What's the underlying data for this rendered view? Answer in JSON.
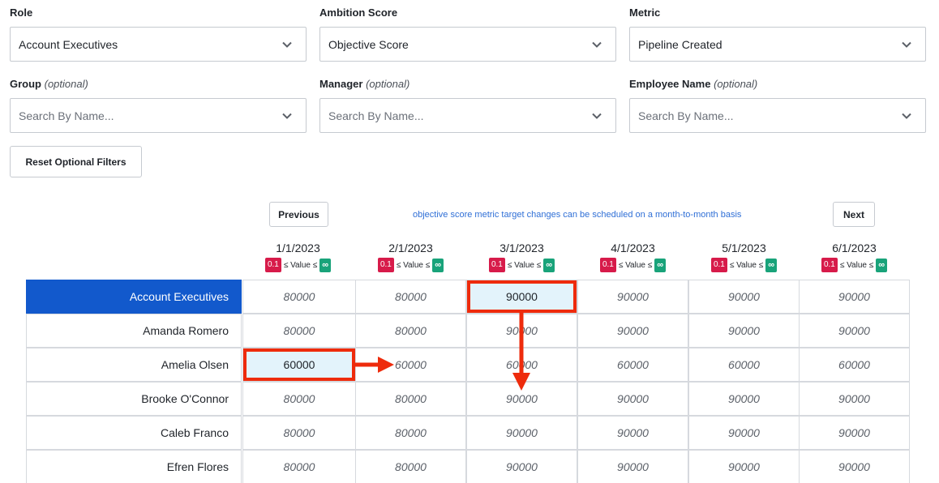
{
  "filters": {
    "role": {
      "label": "Role",
      "value": "Account Executives"
    },
    "ambition": {
      "label": "Ambition Score",
      "value": "Objective Score"
    },
    "metric": {
      "label": "Metric",
      "value": "Pipeline Created"
    },
    "group": {
      "label": "Group",
      "optional": "(optional)",
      "placeholder": "Search By Name..."
    },
    "manager": {
      "label": "Manager",
      "optional": "(optional)",
      "placeholder": "Search By Name..."
    },
    "employee": {
      "label": "Employee Name",
      "optional": "(optional)",
      "placeholder": "Search By Name..."
    }
  },
  "reset_button": "Reset Optional Filters",
  "nav": {
    "previous": "Previous",
    "next": "Next",
    "note": "objective score metric target changes can be scheduled on a month-to-month basis"
  },
  "range": {
    "min": "0.1",
    "middle": "≤ Value ≤",
    "max": "∞"
  },
  "colors": {
    "role_row": "#1259cc",
    "highlight": "#e3f3fb",
    "annotation": "#ee2b0c",
    "badge_min": "#d71b4a",
    "badge_max": "#19a37a"
  },
  "dates": [
    "1/1/2023",
    "2/1/2023",
    "3/1/2023",
    "4/1/2023",
    "5/1/2023",
    "6/1/2023"
  ],
  "rows": [
    {
      "name": "Account Executives",
      "values": [
        "80000",
        "80000",
        "90000",
        "90000",
        "90000",
        "90000"
      ]
    },
    {
      "name": "Amanda Romero",
      "values": [
        "80000",
        "80000",
        "90000",
        "90000",
        "90000",
        "90000"
      ]
    },
    {
      "name": "Amelia Olsen",
      "values": [
        "60000",
        "60000",
        "60000",
        "60000",
        "60000",
        "60000"
      ]
    },
    {
      "name": "Brooke O'Connor",
      "values": [
        "80000",
        "80000",
        "90000",
        "90000",
        "90000",
        "90000"
      ]
    },
    {
      "name": "Caleb Franco",
      "values": [
        "80000",
        "80000",
        "90000",
        "90000",
        "90000",
        "90000"
      ]
    },
    {
      "name": "Efren Flores",
      "values": [
        "80000",
        "80000",
        "90000",
        "90000",
        "90000",
        "90000"
      ]
    }
  ]
}
